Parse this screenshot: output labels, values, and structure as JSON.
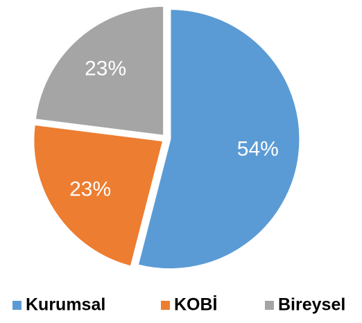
{
  "chart_data": {
    "type": "pie",
    "categories": [
      "Kurumsal",
      "KOBİ",
      "Bireysel"
    ],
    "values": [
      54,
      23,
      23
    ],
    "value_labels": [
      "54%",
      "23%",
      "23%"
    ],
    "colors": [
      "#5b9bd5",
      "#ed7d31",
      "#a5a5a5"
    ],
    "legend": "bottom"
  }
}
